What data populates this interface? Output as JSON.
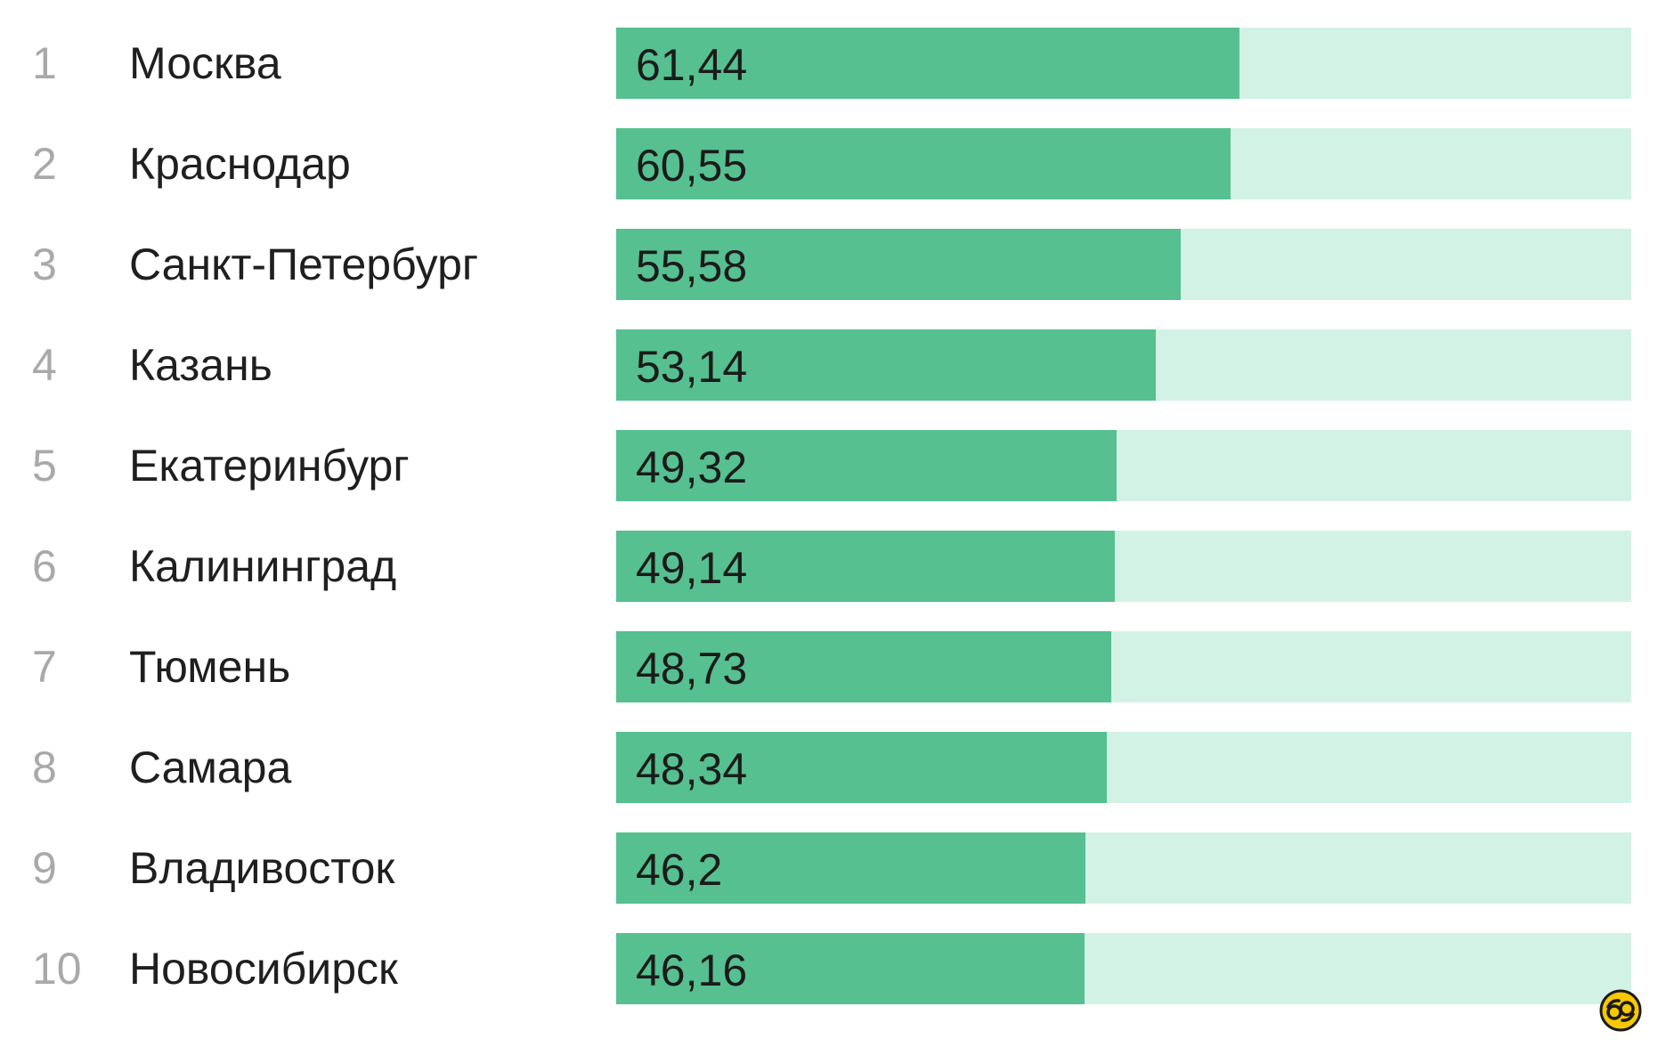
{
  "chart_data": {
    "type": "bar",
    "orientation": "horizontal",
    "ranks": [
      "1",
      "2",
      "3",
      "4",
      "5",
      "6",
      "7",
      "8",
      "9",
      "10"
    ],
    "categories": [
      "Москва",
      "Краснодар",
      "Санкт-Петербург",
      "Казань",
      "Екатеринбург",
      "Калининград",
      "Тюмень",
      "Самара",
      "Владивосток",
      "Новосибирск"
    ],
    "values": [
      61.44,
      60.55,
      55.58,
      53.14,
      49.32,
      49.14,
      48.73,
      48.34,
      46.2,
      46.16
    ],
    "value_labels": [
      "61,44",
      "60,55",
      "55,58",
      "53,14",
      "49,32",
      "49,14",
      "48,73",
      "48,34",
      "46,2",
      "46,16"
    ],
    "xlim": [
      0,
      100
    ],
    "grid": false,
    "colors": {
      "bar": "#56c090",
      "track": "#d3f2e6",
      "rank_text": "#a9a9a9",
      "label_text": "#1f1f1f",
      "logo": "#f5c800"
    }
  },
  "logo": {
    "icon": "watermark-logo-icon"
  }
}
